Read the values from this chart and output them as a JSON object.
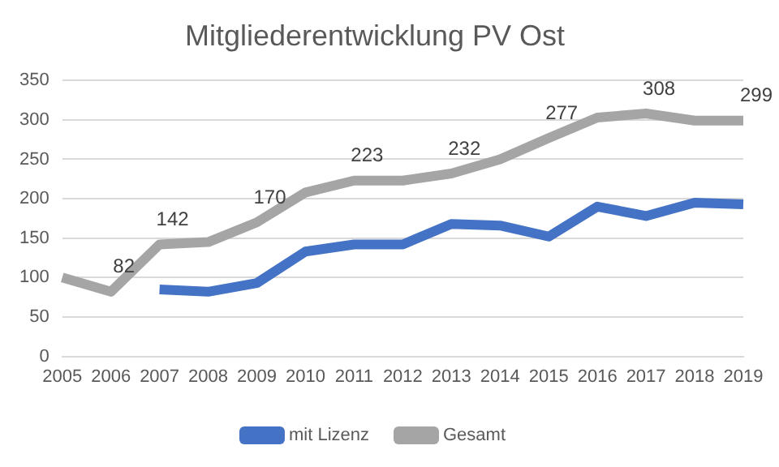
{
  "chart_data": {
    "type": "line",
    "title": "Mitgliederentwicklung PV Ost",
    "categories": [
      "2005",
      "2006",
      "2007",
      "2008",
      "2009",
      "2010",
      "2011",
      "2012",
      "2013",
      "2014",
      "2015",
      "2016",
      "2017",
      "2018",
      "2019"
    ],
    "series": [
      {
        "name": "mit Lizenz",
        "color": "#4472c4",
        "values": [
          null,
          null,
          85,
          82,
          93,
          133,
          142,
          142,
          168,
          166,
          152,
          190,
          178,
          195,
          193
        ]
      },
      {
        "name": "Gesamt",
        "color": "#a5a5a5",
        "values": [
          100,
          82,
          142,
          145,
          170,
          208,
          223,
          223,
          232,
          250,
          277,
          303,
          308,
          299,
          299
        ],
        "value_labels": [
          null,
          "82",
          "142",
          null,
          "170",
          null,
          "223",
          null,
          "232",
          null,
          "277",
          null,
          "308",
          null,
          "299"
        ]
      }
    ],
    "ylim": [
      0,
      350
    ],
    "yticks": [
      0,
      50,
      100,
      150,
      200,
      250,
      300,
      350
    ],
    "grid": "y",
    "legend": "bottom",
    "marker": "none",
    "line_style": "solid"
  }
}
